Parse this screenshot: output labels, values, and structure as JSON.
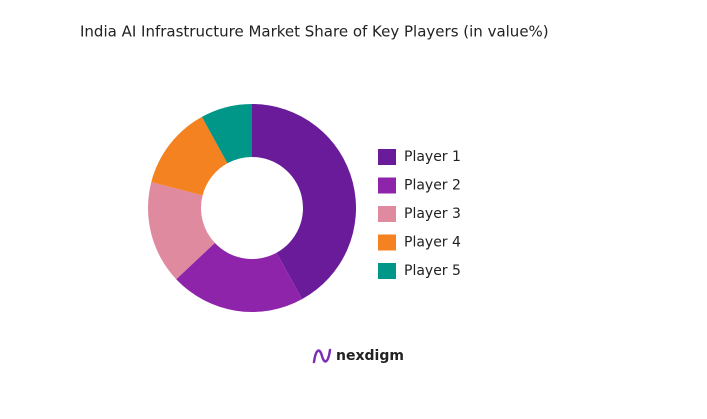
{
  "chart_data": {
    "type": "donut",
    "title": "India AI Infrastructure Market Share of Key Players (in value%)",
    "categories": [
      "Player 1",
      "Player 2",
      "Player 3",
      "Player 4",
      "Player 5"
    ],
    "values": [
      42,
      21,
      16,
      13,
      8
    ],
    "colors": [
      "#6a1b9a",
      "#8e24aa",
      "#e08aa0",
      "#f58220",
      "#009688"
    ],
    "legend": "right"
  },
  "brand": "nexdigm"
}
